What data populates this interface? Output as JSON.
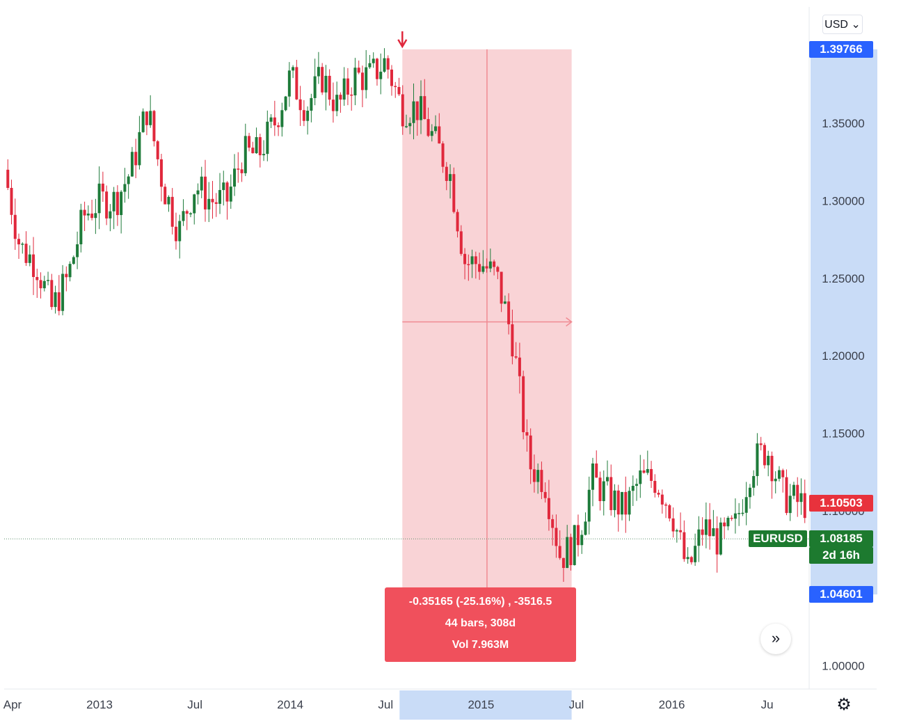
{
  "toolbar": {
    "currency_label": "USD ⌄"
  },
  "price_scale": {
    "ticks": [
      "1.35000",
      "1.30000",
      "1.25000",
      "1.20000",
      "1.15000",
      "1.10000",
      "1.00000"
    ],
    "top_label": "1.39766",
    "bottom_label": "1.04601",
    "last_price_label": "1.10503",
    "symbol_label": "EURUSD",
    "symbol_price": "1.08185",
    "countdown": "2d 16h"
  },
  "time_scale": {
    "labels": [
      "Apr",
      "2013",
      "Jul",
      "2014",
      "Jul",
      "2015",
      "Jul",
      "2016",
      "Ju"
    ]
  },
  "measure": {
    "line1": "-0.35165 (-25.16%) , -3516.5",
    "line2": "44 bars, 308d",
    "line3": "Vol 7.963M"
  },
  "colors": {
    "up": "#1e7b3a",
    "down": "#e0283c",
    "measure_fill": "#f7c4c8",
    "measure_label": "#f0505c",
    "scale_highlight": "#c9dcf7",
    "pill_blue": "#2962ff",
    "pill_green": "#1d7a2f",
    "pill_red": "#e8323c"
  },
  "icons": {
    "scroll": "double-chevron-right-icon",
    "settings": "gear-icon"
  },
  "chart_data": {
    "type": "candlestick",
    "symbol": "EURUSD",
    "y_range": [
      0.985,
      1.425
    ],
    "x_range": [
      "2012-04",
      "2016-06"
    ],
    "close_series": {
      "x": [
        "2012-04",
        "2012-05",
        "2012-06",
        "2012-07",
        "2012-08",
        "2012-09",
        "2012-10",
        "2012-11",
        "2012-12",
        "2013-01",
        "2013-02",
        "2013-03",
        "2013-04",
        "2013-05",
        "2013-06",
        "2013-07",
        "2013-08",
        "2013-09",
        "2013-10",
        "2013-11",
        "2013-12",
        "2014-01",
        "2014-02",
        "2014-03",
        "2014-04",
        "2014-05",
        "2014-06",
        "2014-07",
        "2014-08",
        "2014-09",
        "2014-10",
        "2014-11",
        "2014-12",
        "2015-01",
        "2015-02",
        "2015-03",
        "2015-04",
        "2015-05",
        "2015-06",
        "2015-07",
        "2015-08",
        "2015-09",
        "2015-10",
        "2015-11",
        "2015-12",
        "2016-01",
        "2016-02",
        "2016-03",
        "2016-04",
        "2016-05",
        "2016-06"
      ],
      "y": [
        1.32,
        1.27,
        1.26,
        1.23,
        1.25,
        1.29,
        1.3,
        1.3,
        1.32,
        1.36,
        1.31,
        1.28,
        1.31,
        1.3,
        1.3,
        1.33,
        1.33,
        1.35,
        1.38,
        1.36,
        1.38,
        1.36,
        1.38,
        1.38,
        1.39,
        1.36,
        1.36,
        1.34,
        1.32,
        1.26,
        1.26,
        1.25,
        1.21,
        1.13,
        1.12,
        1.07,
        1.08,
        1.12,
        1.11,
        1.1,
        1.12,
        1.12,
        1.1,
        1.06,
        1.09,
        1.08,
        1.09,
        1.13,
        1.14,
        1.11,
        1.105
      ]
    },
    "measure_range": {
      "from": "2014-05",
      "to": "2015-03",
      "change": -0.35165,
      "change_pct": -25.16,
      "bars": 44,
      "days": 308,
      "volume": "7.963M"
    }
  }
}
